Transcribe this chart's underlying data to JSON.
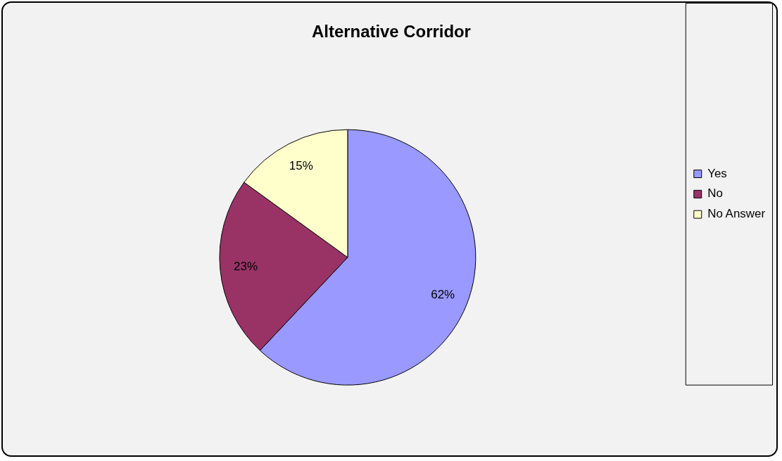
{
  "chart_data": {
    "type": "pie",
    "title": "Alternative Corridor",
    "categories": [
      "Yes",
      "No",
      "No Answer"
    ],
    "values": [
      62,
      23,
      15
    ],
    "colors": [
      "#9999ff",
      "#993366",
      "#ffffcc"
    ],
    "value_labels": [
      "62%",
      "23%",
      "15%"
    ],
    "legend": "right"
  }
}
